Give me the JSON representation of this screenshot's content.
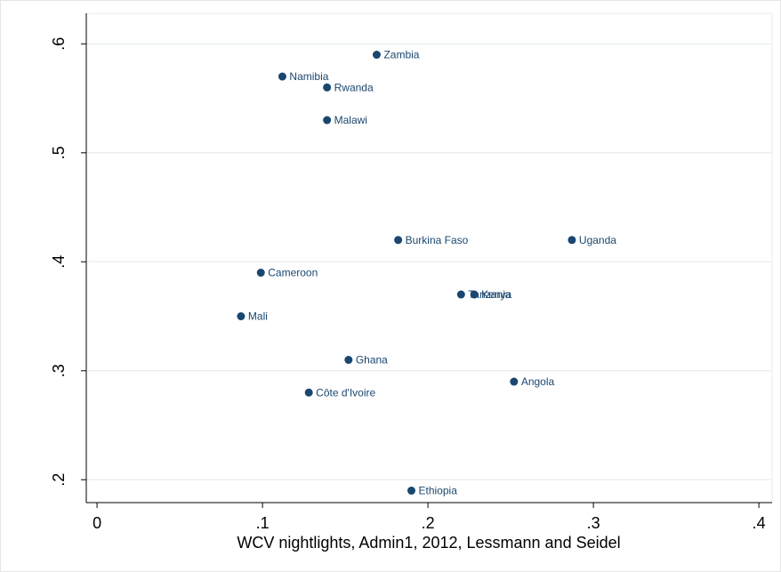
{
  "chart_data": {
    "type": "scatter",
    "x_label": "WCV nightlights, Admin1, 2012, Lessmann and Seidel",
    "labels": [
      "Zambia",
      "Namibia",
      "Rwanda",
      "Malawi",
      "Burkina Faso",
      "Uganda",
      "Cameroon",
      "Tanzania",
      "Kenya",
      "Mali",
      "Ghana",
      "Angola",
      "Côte d'Ivoire",
      "Ethiopia"
    ],
    "x": [
      0.169,
      0.112,
      0.139,
      0.139,
      0.182,
      0.287,
      0.099,
      0.22,
      0.228,
      0.087,
      0.152,
      0.252,
      0.128,
      0.19
    ],
    "values": [
      0.59,
      0.57,
      0.56,
      0.53,
      0.42,
      0.42,
      0.39,
      0.37,
      0.37,
      0.35,
      0.31,
      0.29,
      0.28,
      0.19
    ],
    "color": "#1a476f",
    "xlim": [
      -0.0065,
      0.408
    ],
    "ylim": [
      0.179,
      0.628
    ],
    "xticks": [
      0,
      {
        "value": 0.1,
        "label": ".1"
      },
      {
        "value": 0.2,
        "label": ".2"
      },
      {
        "value": 0.3,
        "label": ".3"
      },
      {
        "value": 0.4,
        "label": ".4"
      }
    ],
    "yticks": [
      {
        "value": 0.2,
        "label": ".2"
      },
      {
        "value": 0.3,
        "label": ".3"
      },
      {
        "value": 0.4,
        "label": ".4"
      },
      {
        "value": 0.5,
        "label": ".5"
      },
      {
        "value": 0.6,
        "label": ".6"
      }
    ],
    "grid": true
  }
}
